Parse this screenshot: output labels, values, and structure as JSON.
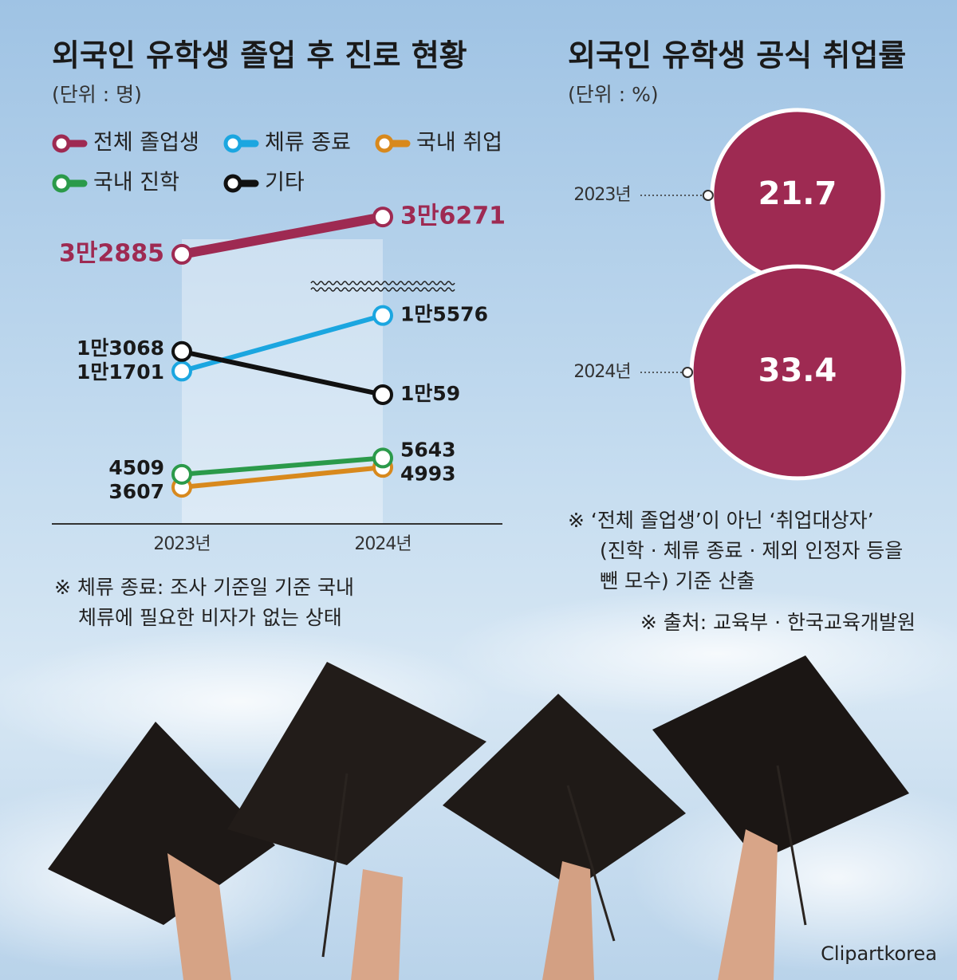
{
  "chart_data": [
    {
      "type": "line",
      "title": "외국인 유학생 졸업 후 진로 현황",
      "subtitle": "(단위 : 명)",
      "categories": [
        "2023년",
        "2024년"
      ],
      "ylim": [
        2000,
        37000
      ],
      "axis_break": [
        17000,
        31000
      ],
      "series": [
        {
          "name": "전체 졸업생",
          "color": "#9e2a52",
          "values": [
            32885,
            36271
          ],
          "value_labels": [
            "3만2885",
            "3만6271"
          ]
        },
        {
          "name": "체류 종료",
          "color": "#1ba6e0",
          "values": [
            11701,
            15576
          ],
          "value_labels": [
            "1만1701",
            "1만5576"
          ]
        },
        {
          "name": "국내 취업",
          "color": "#d8891d",
          "values": [
            3607,
            4993
          ]
        },
        {
          "name": "국내 진학",
          "color": "#2b9a4a",
          "values": [
            4509,
            5643
          ]
        },
        {
          "name": "기타",
          "color": "#111111",
          "values": [
            13068,
            10059
          ],
          "value_labels": [
            "1만3068",
            "1만59"
          ]
        }
      ],
      "notes": [
        "※ 체류 종료: 조사 기준일 기준 국내",
        "체류에 필요한 비자가 없는 상태"
      ]
    },
    {
      "type": "bubble",
      "title": "외국인 유학생 공식 취업률",
      "subtitle": "(단위 : %)",
      "categories": [
        "2023년",
        "2024년"
      ],
      "values": [
        21.7,
        33.4
      ],
      "color": "#9e2a52",
      "notes": [
        "※ ‘전체 졸업생’이 아닌 ‘취업대상자’",
        "(진학 · 체류 종료 · 제외 인정자 등을",
        "뺀 모수) 기준 산출"
      ],
      "source": "※ 출처: 교육부 · 한국교육개발원"
    }
  ],
  "credit": "Clipartkorea"
}
